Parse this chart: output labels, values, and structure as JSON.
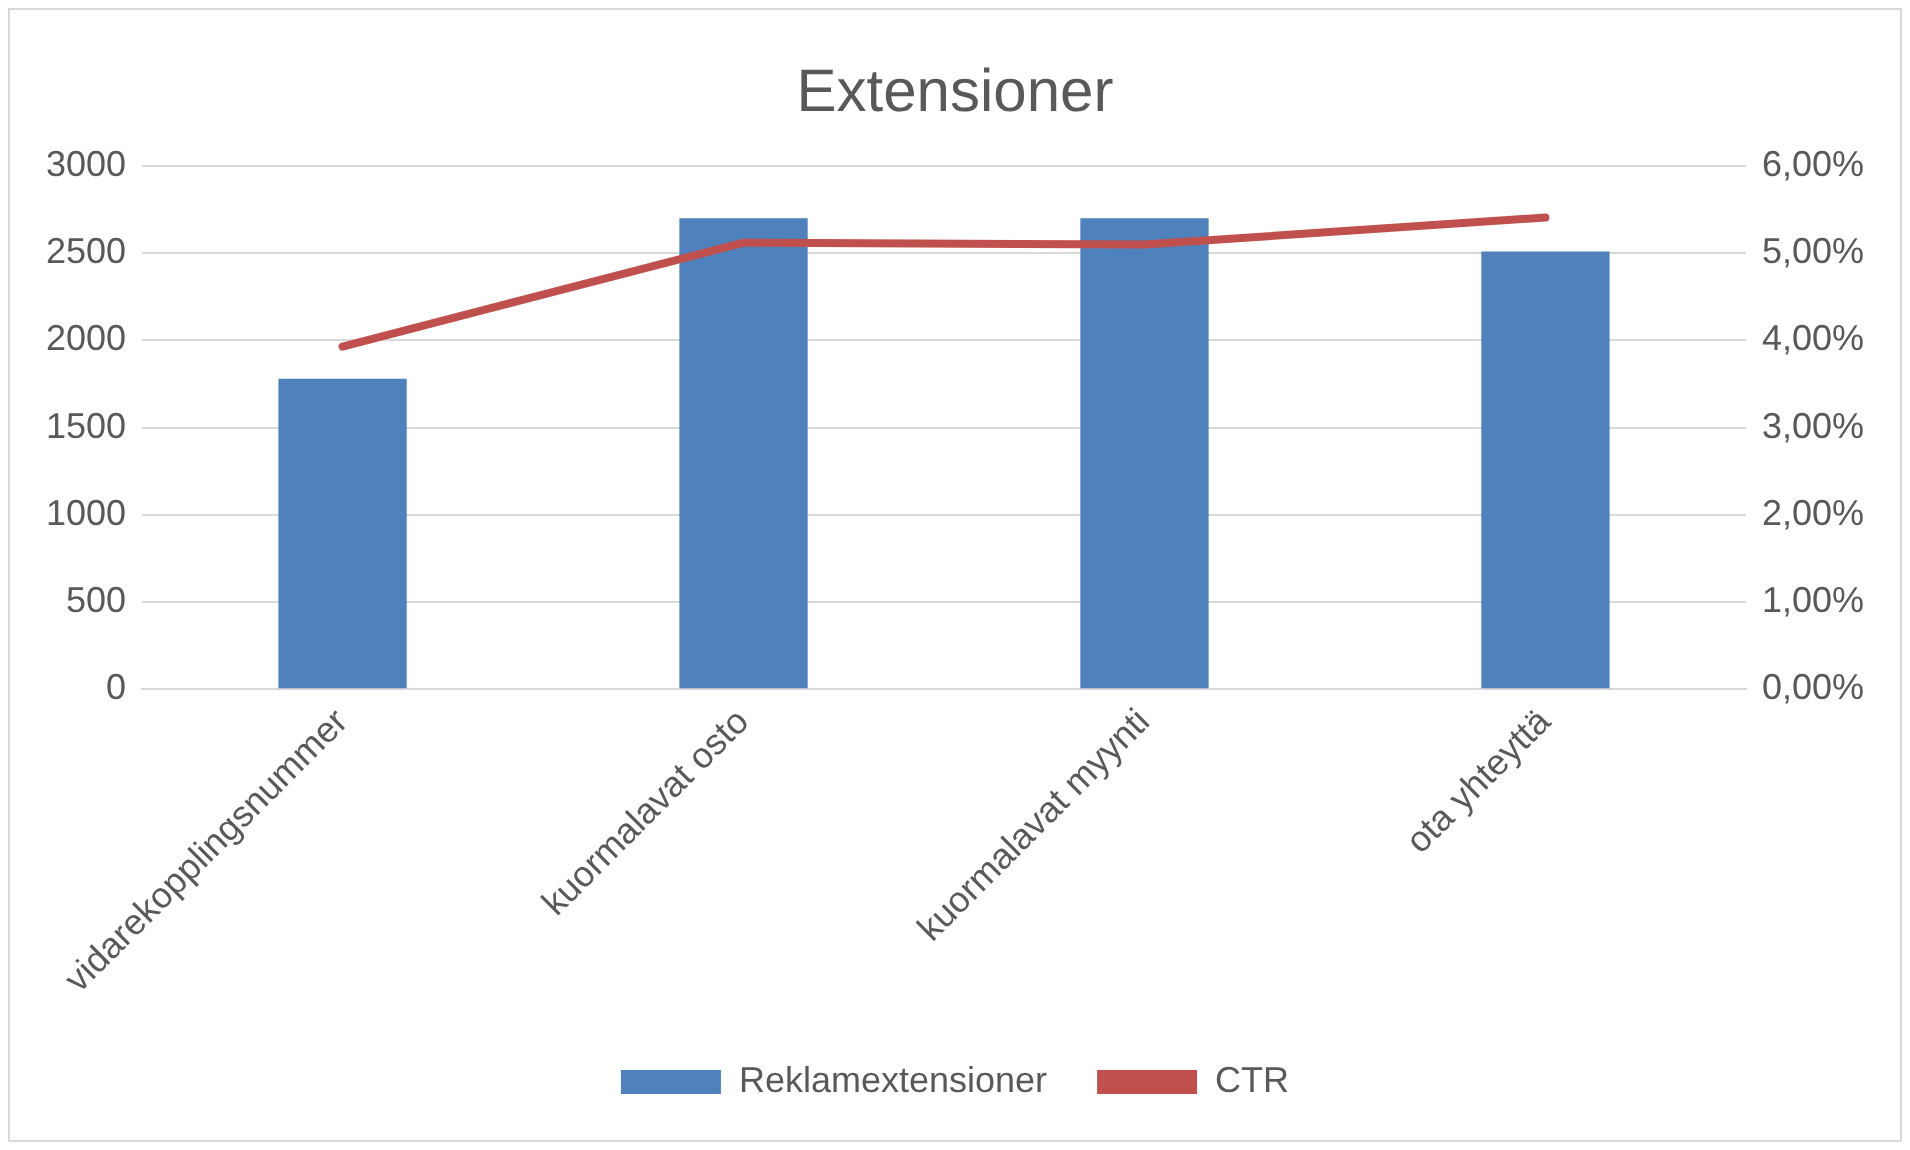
{
  "chart_data": {
    "type": "bar",
    "title": "Extensioner",
    "categories": [
      "vidarekopplingsnummer",
      "kuormalavat osto",
      "kuormalavat myynti",
      "ota yhteyttä"
    ],
    "series": [
      {
        "name": "Reklamextensioner",
        "color": "#4f81bd",
        "values": [
          1780,
          2700,
          2700,
          2510
        ]
      },
      {
        "name": "CTR",
        "type": "line",
        "color": "#c0504d",
        "axis": "y2",
        "values": [
          3.93,
          5.12,
          5.1,
          5.41
        ],
        "marker": "none"
      }
    ],
    "ylim": [
      0,
      3000
    ],
    "yticks": [
      0,
      500,
      1000,
      1500,
      2000,
      2500,
      3000
    ],
    "y2lim": [
      0,
      6
    ],
    "y2ticks": [
      {
        "value": 0,
        "label": "0,00%"
      },
      {
        "value": 1,
        "label": "1,00%"
      },
      {
        "value": 2,
        "label": "2,00%"
      },
      {
        "value": 3,
        "label": "3,00%"
      },
      {
        "value": 4,
        "label": "4,00%"
      },
      {
        "value": 5,
        "label": "5,00%"
      },
      {
        "value": 6,
        "label": "6,00%"
      }
    ],
    "grid": "y",
    "legend": "bottom"
  }
}
